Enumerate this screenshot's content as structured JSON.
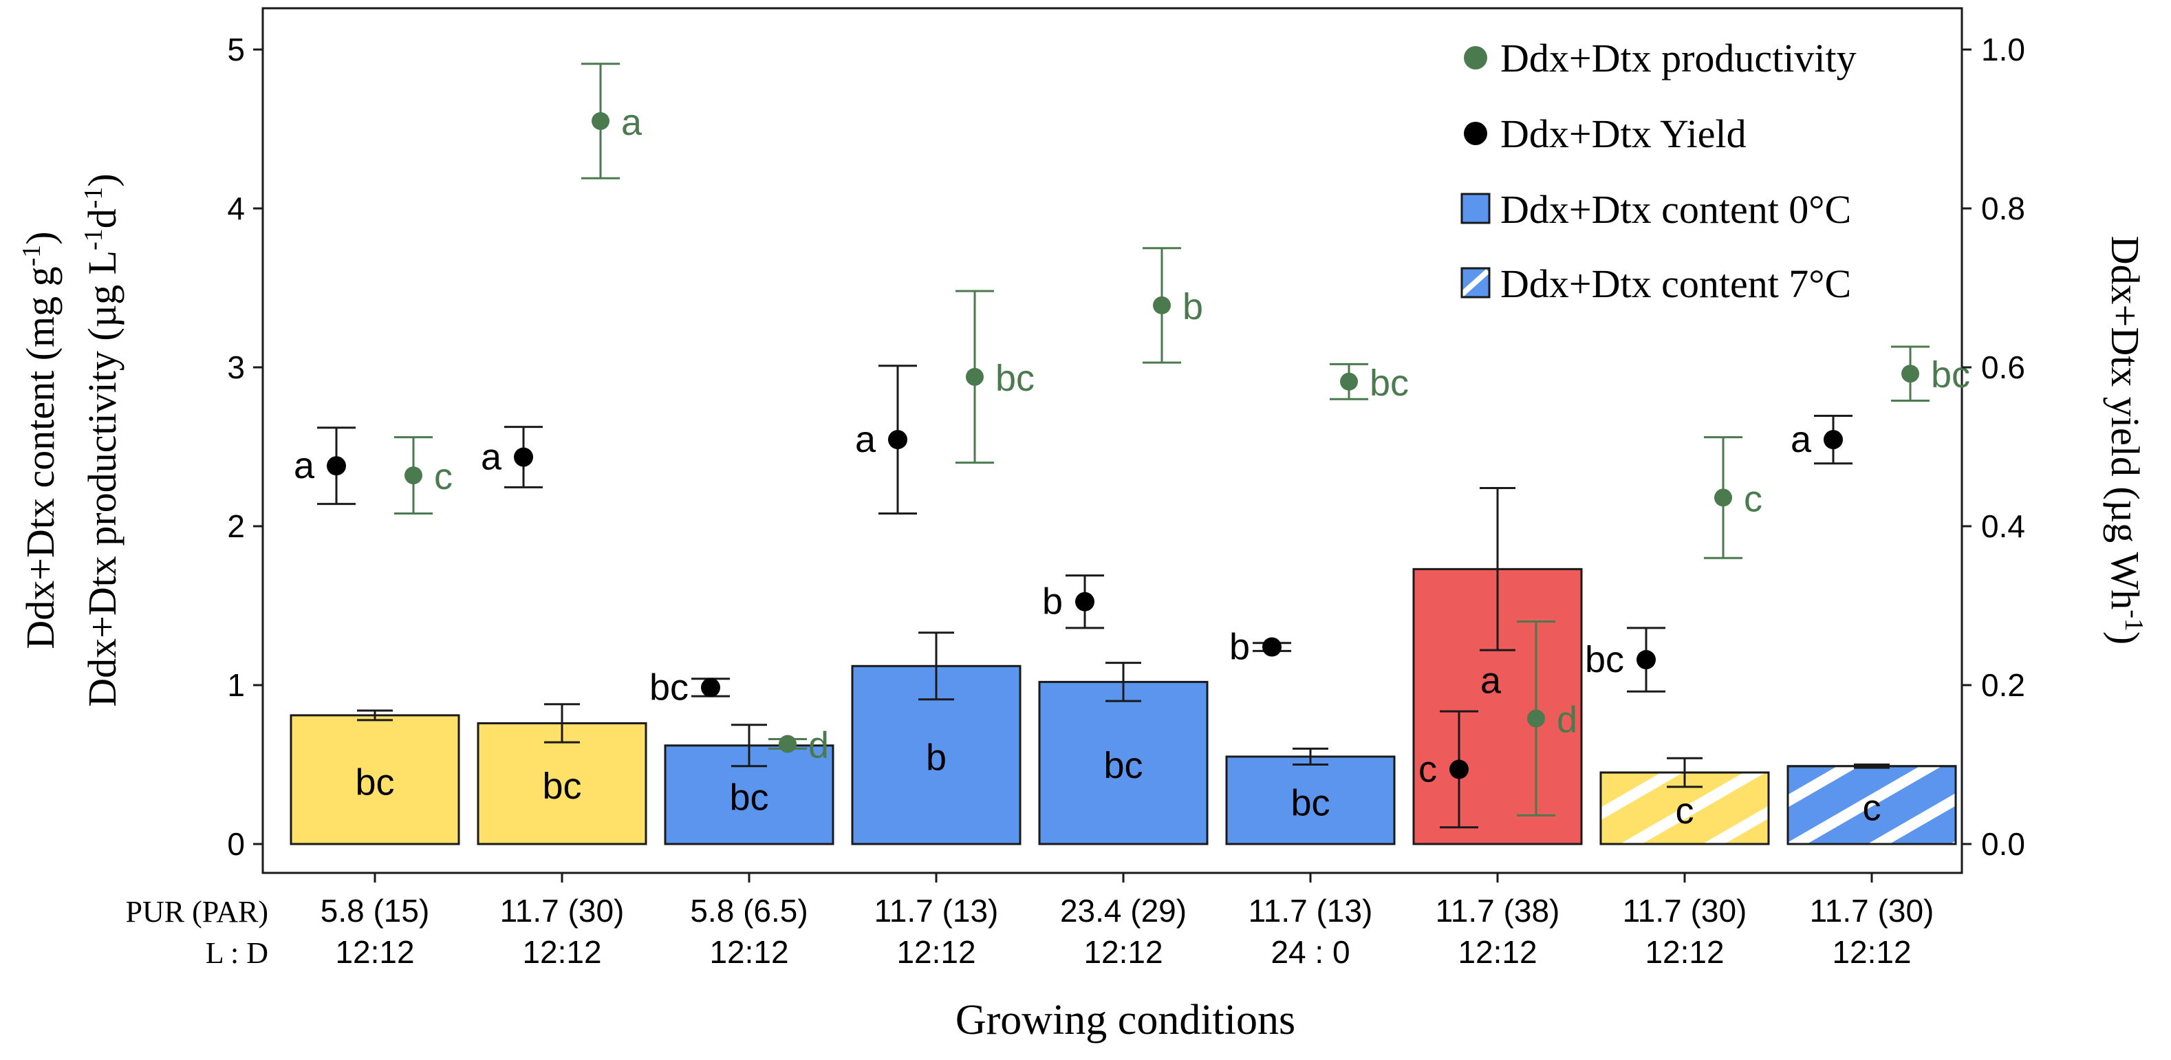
{
  "chart_data": {
    "type": "bar",
    "categories": [
      {
        "pur": "5.8 (15)",
        "ld": "12:12"
      },
      {
        "pur": "11.7 (30)",
        "ld": "12:12"
      },
      {
        "pur": "5.8 (6.5)",
        "ld": "12:12"
      },
      {
        "pur": "11.7 (13)",
        "ld": "12:12"
      },
      {
        "pur": "23.4 (29)",
        "ld": "12:12"
      },
      {
        "pur": "11.7 (13)",
        "ld": "24 : 0"
      },
      {
        "pur": "11.7 (38)",
        "ld": "12:12"
      },
      {
        "pur": "11.7 (30)",
        "ld": "12:12"
      },
      {
        "pur": "11.7 (30)",
        "ld": "12:12"
      }
    ],
    "row_labels": {
      "pur": "PUR (PAR)",
      "ld": "L : D"
    },
    "xlabel": "Growing conditions",
    "ylabel_left_1": "Ddx+Dtx content (mg g",
    "ylabel_left_1_sup": "-1",
    "ylabel_left_1_end": ")",
    "ylabel_left_2": "Ddx+Dtx productivity (µg L",
    "ylabel_left_2_sup1": "-1",
    "ylabel_left_2_mid": "d",
    "ylabel_left_2_sup2": "-1",
    "ylabel_left_2_end": ")",
    "ylabel_right": "Ddx+Dtx yield (µg Wh",
    "ylabel_right_sup": "-1",
    "ylabel_right_end": ")",
    "ylim_left": [
      0,
      5.2
    ],
    "yticks_left": [
      "0",
      "1",
      "2",
      "3",
      "4",
      "5"
    ],
    "ylim_right": [
      0,
      1.04
    ],
    "yticks_right": [
      "0.0",
      "0.2",
      "0.4",
      "0.6",
      "0.8",
      "1.0"
    ],
    "colors": {
      "yellow": "#FFE169",
      "blue": "#5B95EE",
      "red": "#EE5B5B",
      "green": "#4A7A4E",
      "black": "#000000"
    },
    "bars": [
      {
        "value": 0.81,
        "err": 0.03,
        "color": "yellow",
        "hatched": false,
        "label": "bc"
      },
      {
        "value": 0.76,
        "err": 0.12,
        "color": "yellow",
        "hatched": false,
        "label": "bc"
      },
      {
        "value": 0.62,
        "err": 0.13,
        "color": "blue",
        "hatched": false,
        "label": "bc"
      },
      {
        "value": 1.12,
        "err": 0.21,
        "color": "blue",
        "hatched": false,
        "label": "b"
      },
      {
        "value": 1.02,
        "err": 0.12,
        "color": "blue",
        "hatched": false,
        "label": "bc"
      },
      {
        "value": 0.55,
        "err": 0.05,
        "color": "blue",
        "hatched": false,
        "label": "bc"
      },
      {
        "value": 1.73,
        "err": 0.51,
        "color": "red",
        "hatched": false,
        "label": "a"
      },
      {
        "value": 0.45,
        "err": 0.09,
        "color": "yellow",
        "hatched": true,
        "label": "c"
      },
      {
        "value": 0.49,
        "err": 0.01,
        "color": "blue",
        "hatched": true,
        "label": "c"
      }
    ],
    "yield": [
      {
        "value": 0.476,
        "err": 0.048,
        "label": "a"
      },
      {
        "value": 0.487,
        "err": 0.038,
        "label": "a"
      },
      {
        "value": 0.197,
        "err": 0.011,
        "label": "bc"
      },
      {
        "value": 0.509,
        "err": 0.093,
        "label": "a"
      },
      {
        "value": 0.305,
        "err": 0.033,
        "label": "b"
      },
      {
        "value": 0.248,
        "err": 0.005,
        "label": "b"
      },
      {
        "value": 0.094,
        "err": 0.073,
        "label": "c"
      },
      {
        "value": 0.232,
        "err": 0.04,
        "label": "bc"
      },
      {
        "value": 0.509,
        "err": 0.03,
        "label": "a"
      }
    ],
    "productivity": [
      {
        "value": 2.32,
        "err": 0.24,
        "label": "c"
      },
      {
        "value": 4.55,
        "err": 0.36,
        "label": "a"
      },
      {
        "value": 0.63,
        "err": 0.03,
        "label": "d"
      },
      {
        "value": 2.94,
        "err": 0.54,
        "label": "bc"
      },
      {
        "value": 3.39,
        "err": 0.36,
        "label": "b"
      },
      {
        "value": 2.91,
        "err": 0.11,
        "label": "bc"
      },
      {
        "value": 0.79,
        "err": 0.61,
        "label": "d"
      },
      {
        "value": 2.18,
        "err": 0.38,
        "label": "c"
      },
      {
        "value": 2.96,
        "err": 0.17,
        "label": "bc"
      }
    ],
    "legend": [
      {
        "label": "Ddx+Dtx productivity",
        "kind": "point",
        "color": "green"
      },
      {
        "label": "Ddx+Dtx Yield",
        "kind": "point",
        "color": "black"
      },
      {
        "label": "Ddx+Dtx content 0°C",
        "kind": "box",
        "color": "blue",
        "hatched": false
      },
      {
        "label": "Ddx+Dtx content 7°C",
        "kind": "box",
        "color": "blue",
        "hatched": true
      }
    ],
    "legend_position": "top-right"
  }
}
